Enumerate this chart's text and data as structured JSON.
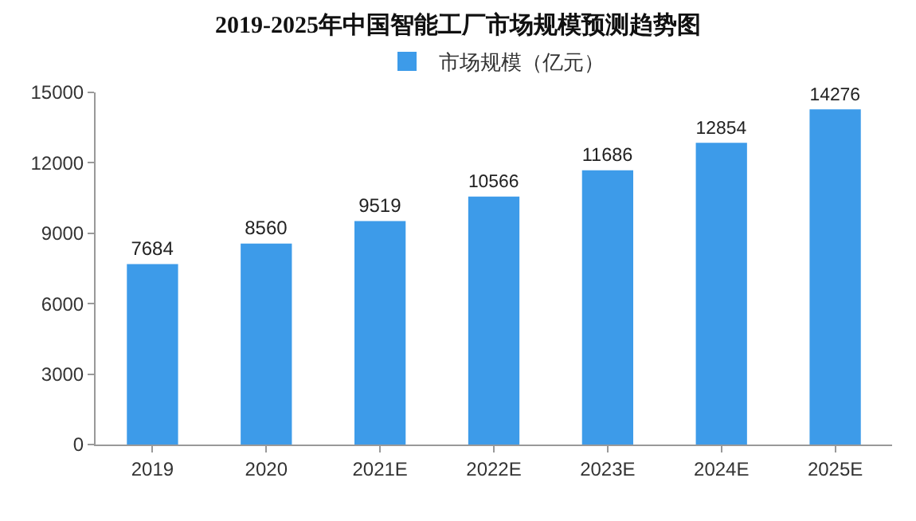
{
  "chart_data": {
    "type": "bar",
    "title": "2019-2025年中国智能工厂市场规模预测趋势图",
    "categories": [
      "2019",
      "2020",
      "2021E",
      "2022E",
      "2023E",
      "2024E",
      "2025E"
    ],
    "series": [
      {
        "name": "市场规模（亿元）",
        "color": "#3d9be9",
        "values": [
          7684,
          8560,
          9519,
          10566,
          11686,
          12854,
          14276
        ]
      }
    ],
    "ylim": [
      0,
      15000
    ],
    "yticks": [
      0,
      3000,
      6000,
      9000,
      12000,
      15000
    ],
    "data_labels": true,
    "legend": "top",
    "grid": false
  }
}
